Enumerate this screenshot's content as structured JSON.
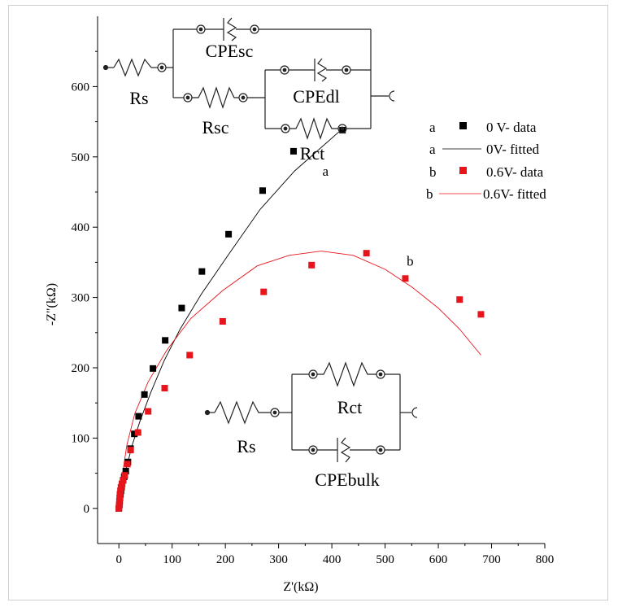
{
  "chart_data": {
    "type": "scatter",
    "xlabel": "Z'(kΩ)",
    "ylabel": "-Z\"(kΩ)",
    "xlim": [
      -40,
      800
    ],
    "ylim": [
      -50,
      700
    ],
    "xticks": [
      0,
      100,
      200,
      300,
      400,
      500,
      600,
      700,
      800
    ],
    "yticks": [
      0,
      100,
      200,
      300,
      400,
      500,
      600
    ],
    "grid": false,
    "legend_position": "top-right",
    "series": [
      {
        "name": "0 V- data",
        "tag": "a",
        "kind": "scatter",
        "color": "#000000",
        "x": [
          0,
          1,
          1.5,
          2,
          3,
          4,
          5,
          6,
          8,
          10,
          13,
          17,
          22,
          29,
          37,
          48,
          64,
          87,
          118,
          156,
          206,
          270,
          328,
          420
        ],
        "y": [
          0,
          5,
          10,
          15,
          20,
          25,
          30,
          35,
          40,
          45,
          53,
          66,
          85,
          106,
          131,
          162,
          199,
          239,
          285,
          337,
          390,
          452,
          508,
          538
        ]
      },
      {
        "name": "0V- fitted",
        "tag": "a",
        "kind": "line",
        "color": "#000000",
        "x": [
          0,
          3,
          8,
          15,
          25,
          40,
          60,
          85,
          115,
          155,
          205,
          265,
          330,
          420
        ],
        "y": [
          0,
          20,
          40,
          60,
          90,
          125,
          165,
          210,
          255,
          305,
          360,
          425,
          480,
          540
        ]
      },
      {
        "name": "0.6V- data",
        "tag": "b",
        "kind": "scatter",
        "color": "#e8141b",
        "x": [
          0,
          0.5,
          1,
          1.5,
          2,
          3,
          4,
          6,
          8,
          11,
          16,
          22,
          36,
          55,
          86,
          133,
          195,
          272,
          362,
          465,
          538,
          640,
          680
        ],
        "y": [
          0,
          5,
          10,
          15,
          20,
          25,
          30,
          35,
          40,
          47,
          63,
          83,
          108,
          138,
          171,
          218,
          266,
          308,
          346,
          363,
          327,
          297,
          276
        ]
      },
      {
        "name": "0.6V- fitted",
        "tag": "b",
        "kind": "line",
        "color": "#e8141b",
        "x": [
          0,
          5,
          15,
          30,
          55,
          90,
          135,
          195,
          260,
          320,
          380,
          440,
          500,
          550,
          600,
          640,
          680
        ],
        "y": [
          0,
          40,
          90,
          135,
          180,
          225,
          270,
          310,
          345,
          360,
          366,
          360,
          340,
          315,
          285,
          255,
          218
        ]
      }
    ],
    "annotations": [
      {
        "text": "a",
        "x": 388,
        "y": 473
      },
      {
        "text": "b",
        "x": 547,
        "y": 345
      }
    ]
  },
  "circuits": {
    "top": {
      "labels": [
        "Rs",
        "CPEsc",
        "Rsc",
        "CPEdl",
        "Rct"
      ]
    },
    "bottom": {
      "labels": [
        "Rs",
        "Rct",
        "CPEbulk"
      ]
    }
  }
}
